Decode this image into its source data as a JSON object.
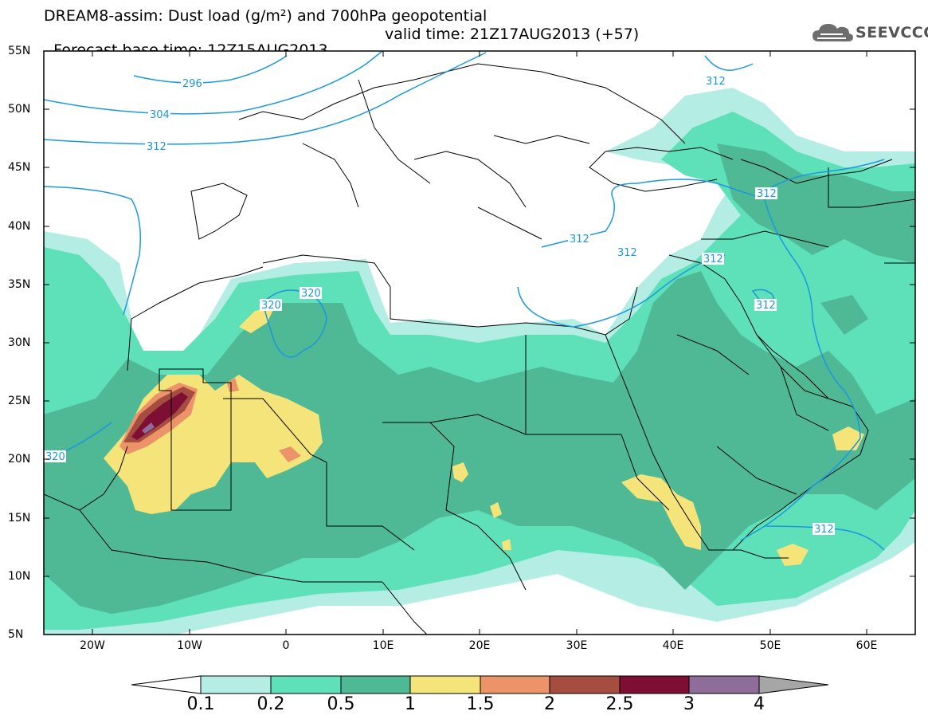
{
  "title": {
    "line1": "DREAM8-assim: Dust load (g/m²) and 700hPa geopotential",
    "line2_base": "Forecast base time: 12Z15AUG2013",
    "line2_valid": "valid time: 21Z17AUG2013 (+57)"
  },
  "logo": {
    "text": "SEEVCCC",
    "icon": "cloud-icon"
  },
  "axes": {
    "lat_labels": [
      "55N",
      "50N",
      "45N",
      "40N",
      "35N",
      "30N",
      "25N",
      "20N",
      "15N",
      "10N",
      "5N"
    ],
    "lon_labels": [
      "20W",
      "10W",
      "0",
      "10E",
      "20E",
      "30E",
      "40E",
      "50E",
      "60E"
    ]
  },
  "contours": {
    "labels": [
      "296",
      "304",
      "312",
      "312",
      "312",
      "312",
      "312",
      "312",
      "312",
      "312",
      "320",
      "320",
      "320"
    ]
  },
  "colorbar": {
    "labels": [
      "0.1",
      "0.2",
      "0.5",
      "1",
      "1.5",
      "2",
      "2.5",
      "3",
      "4"
    ],
    "colors": [
      "#ffffff",
      "#b3ede4",
      "#5ee0b8",
      "#4fb894",
      "#f5e479",
      "#ec936a",
      "#a64d42",
      "#7e0f34",
      "#8e6d9b",
      "#a6a6a6"
    ]
  }
}
